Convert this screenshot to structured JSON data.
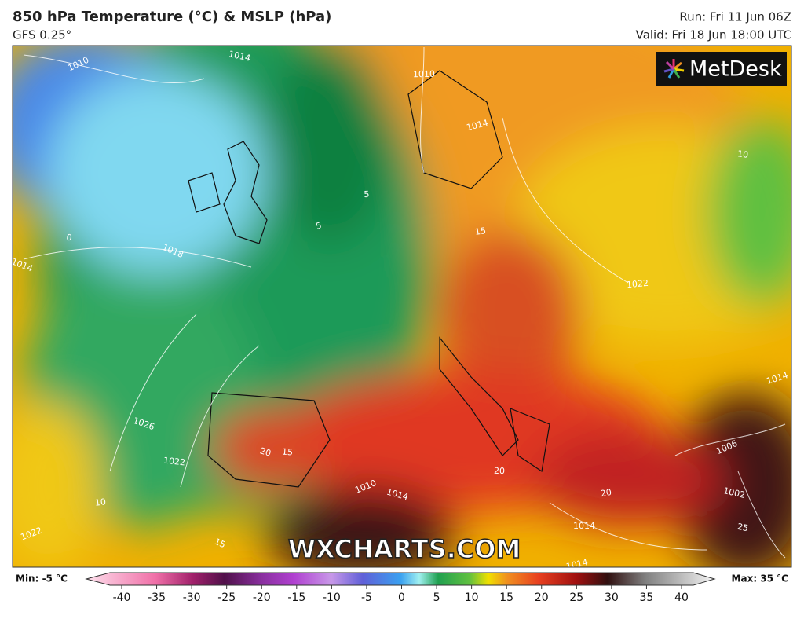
{
  "header": {
    "title": "850 hPa Temperature (°C) & MSLP (hPa)",
    "subtitle": "GFS 0.25°",
    "run": "Run: Fri 11 Jun 06Z",
    "valid": "Valid: Fri 18 Jun 18:00 UTC"
  },
  "logo": "MetDesk",
  "watermark": "WXCHARTS.COM",
  "contour_labels": [
    "1010",
    "1014",
    "1010",
    "1014",
    "1018",
    "0",
    "5",
    "5",
    "1014",
    "10",
    "1022",
    "1014",
    "1026",
    "1022",
    "10",
    "1022",
    "20",
    "15",
    "15",
    "1010",
    "1014",
    "20",
    "20",
    "1006",
    "1002",
    "1014",
    "1014",
    "15",
    "25"
  ],
  "legend": {
    "min": "Min: -5 °C",
    "max": "Max: 35 °C",
    "ticks": [
      -40,
      -35,
      -30,
      -25,
      -20,
      -15,
      -10,
      -5,
      0,
      5,
      10,
      15,
      20,
      25,
      30,
      35,
      40
    ]
  }
}
